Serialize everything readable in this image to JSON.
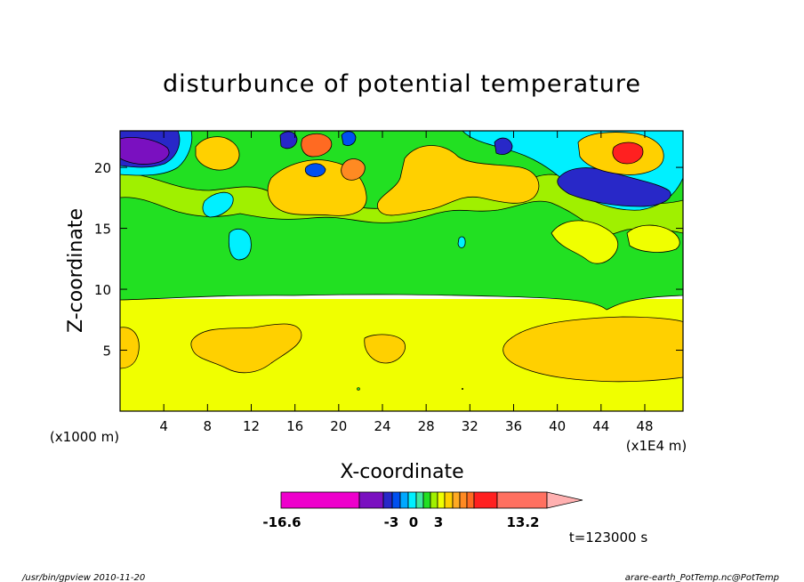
{
  "chart_data": {
    "type": "heatmap",
    "title": "disturbunce of potential temperature",
    "xlabel": "X-coordinate",
    "ylabel": "Z-coordinate",
    "x_unit_left": "(x1000 m)",
    "x_unit_right": "(x1E4 m)",
    "xlim": [
      0,
      51.5
    ],
    "ylim": [
      0,
      23
    ],
    "x_ticks": [
      4,
      8,
      12,
      16,
      20,
      24,
      28,
      32,
      36,
      40,
      44,
      48
    ],
    "y_ticks": [
      5,
      10,
      15,
      20
    ],
    "colorbar": {
      "min_label": "-16.6",
      "mid_labels": [
        "-3",
        "0",
        "3"
      ],
      "max_label": "13.2",
      "colors": [
        "#ee00cc",
        "#7a10c0",
        "#2828c8",
        "#0050f0",
        "#00a8ff",
        "#00f0ff",
        "#40e8a0",
        "#22e022",
        "#a0f000",
        "#f0ff00",
        "#ffd000",
        "#ffaa22",
        "#ff8a22",
        "#ff6a22",
        "#ff2020",
        "#ff7060",
        "#ffb0b0"
      ]
    },
    "regions": [
      {
        "color": "#f0ff00",
        "desc": "lower layer",
        "z": [
          0,
          9.2
        ]
      },
      {
        "color": "#22e022",
        "desc": "middle layer",
        "z": [
          9.2,
          17
        ]
      },
      {
        "color": "#ffd000",
        "desc": "warm blob",
        "x": 2,
        "z": 6
      },
      {
        "color": "#ffd000",
        "desc": "warm blob",
        "x": 11,
        "z": 5.5
      },
      {
        "color": "#ffd000",
        "desc": "warm blob",
        "x": 24,
        "z": 5.7
      },
      {
        "color": "#ffd000",
        "desc": "warm blob",
        "x": 43,
        "z": 5
      },
      {
        "color": "#7a10c0",
        "desc": "cold core",
        "x": 2,
        "z": 21
      },
      {
        "color": "#2828c8",
        "desc": "cold core",
        "x": 45,
        "z": 18
      },
      {
        "color": "#ff2020",
        "desc": "warm core",
        "x": 46,
        "z": 21
      },
      {
        "color": "#ff6a22",
        "desc": "warm core",
        "x": 17.5,
        "z": 21.5
      },
      {
        "color": "#ff8a22",
        "desc": "warm core",
        "x": 21,
        "z": 19.5
      }
    ]
  },
  "footer": {
    "time_label": "t=123000 s",
    "program": "/usr/bin/gpview   2010-11-20",
    "source": "arare-earth_PotTemp.nc@PotTemp"
  }
}
